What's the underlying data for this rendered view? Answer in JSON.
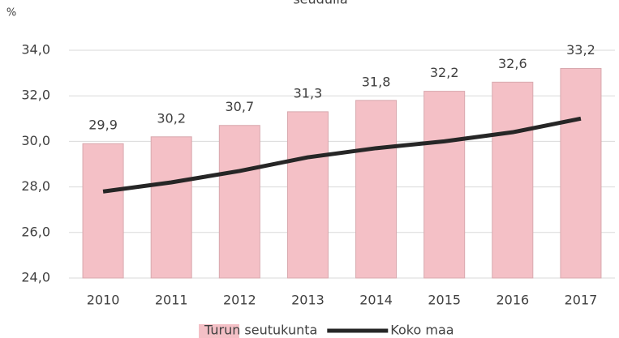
{
  "chart_data": {
    "type": "bar",
    "title": "seudulla",
    "y_axis_label": "%",
    "categories": [
      "2010",
      "2011",
      "2012",
      "2013",
      "2014",
      "2015",
      "2016",
      "2017"
    ],
    "series": [
      {
        "name": "Turun seutukunta",
        "type": "bar",
        "color": "#f4c0c6",
        "values": [
          29.9,
          30.2,
          30.7,
          31.3,
          31.8,
          32.2,
          32.6,
          33.2
        ],
        "value_labels": [
          "29,9",
          "30,2",
          "30,7",
          "31,3",
          "31,8",
          "32,2",
          "32,6",
          "33,2"
        ]
      },
      {
        "name": "Koko maa",
        "type": "line",
        "color": "#262626",
        "values": [
          27.8,
          28.2,
          28.7,
          29.3,
          29.7,
          30.0,
          30.4,
          31.0
        ]
      }
    ],
    "ylim": [
      24,
      34
    ],
    "yticks": [
      {
        "value": 24,
        "label": "24,0"
      },
      {
        "value": 26,
        "label": "26,0"
      },
      {
        "value": 28,
        "label": "28,0"
      },
      {
        "value": 30,
        "label": "30,0"
      },
      {
        "value": 32,
        "label": "32,0"
      },
      {
        "value": 34,
        "label": "34,0"
      }
    ],
    "grid": true,
    "legend": "bottom"
  }
}
